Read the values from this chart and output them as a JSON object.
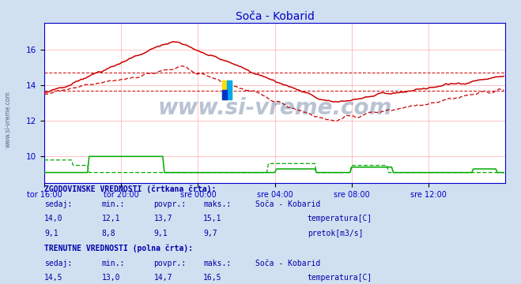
{
  "title": "Soča - Kobarid",
  "title_color": "#0000cc",
  "bg_color": "#d0e0f0",
  "plot_bg_color": "#ffffff",
  "grid_color": "#ffaaaa",
  "axis_color": "#0000cc",
  "text_color": "#0000aa",
  "watermark": "www.si-vreme.com",
  "xlabel_ticks": [
    "tor 16:00",
    "tor 20:00",
    "sre 00:00",
    "sre 04:00",
    "sre 08:00",
    "sre 12:00"
  ],
  "xlim": [
    0,
    288
  ],
  "ylim": [
    8.5,
    17.5
  ],
  "yticks": [
    10,
    12,
    14,
    16
  ],
  "temp_solid_color": "#cc0000",
  "temp_dashed_color": "#cc0000",
  "flow_solid_color": "#00aa00",
  "flow_dashed_color": "#00aa00",
  "avg_temp_hist": 13.7,
  "avg_temp_curr": 14.7,
  "n_points": 288,
  "tick_positions": [
    0,
    48,
    96,
    144,
    192,
    240
  ]
}
